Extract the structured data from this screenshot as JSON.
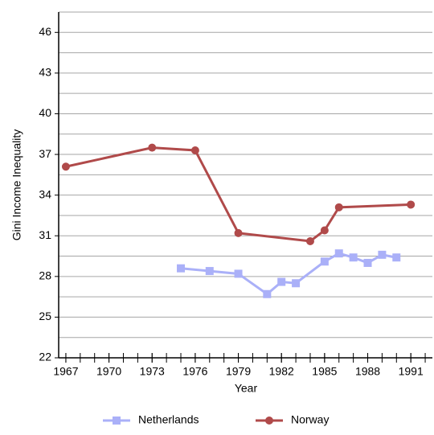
{
  "chart_data": {
    "type": "line",
    "x_label": "Year",
    "y_label": "Gini Income Inequality",
    "xlim": [
      1966.5,
      1992.5
    ],
    "xticks": [
      1967,
      1970,
      1973,
      1976,
      1979,
      1982,
      1985,
      1988,
      1991
    ],
    "ylim": [
      22,
      47.5
    ],
    "yticks": [
      22,
      25,
      28,
      31,
      34,
      37,
      40,
      43,
      46
    ],
    "grid": true,
    "legend": "bottom",
    "series": [
      {
        "name": "Netherlands",
        "color": "#aab0f8",
        "marker": "square",
        "x": [
          1975,
          1977,
          1979,
          1981,
          1982,
          1983,
          1985,
          1986,
          1987,
          1988,
          1989,
          1990
        ],
        "values": [
          28.6,
          28.4,
          28.2,
          26.7,
          27.6,
          27.5,
          29.1,
          29.7,
          29.4,
          29.0,
          29.6,
          29.4
        ]
      },
      {
        "name": "Norway",
        "color": "#b04a4a",
        "marker": "circle",
        "x": [
          1967,
          1973,
          1976,
          1979,
          1984,
          1985,
          1986,
          1991
        ],
        "values": [
          36.1,
          37.5,
          37.3,
          31.2,
          30.6,
          31.4,
          33.1,
          33.3
        ]
      }
    ]
  }
}
